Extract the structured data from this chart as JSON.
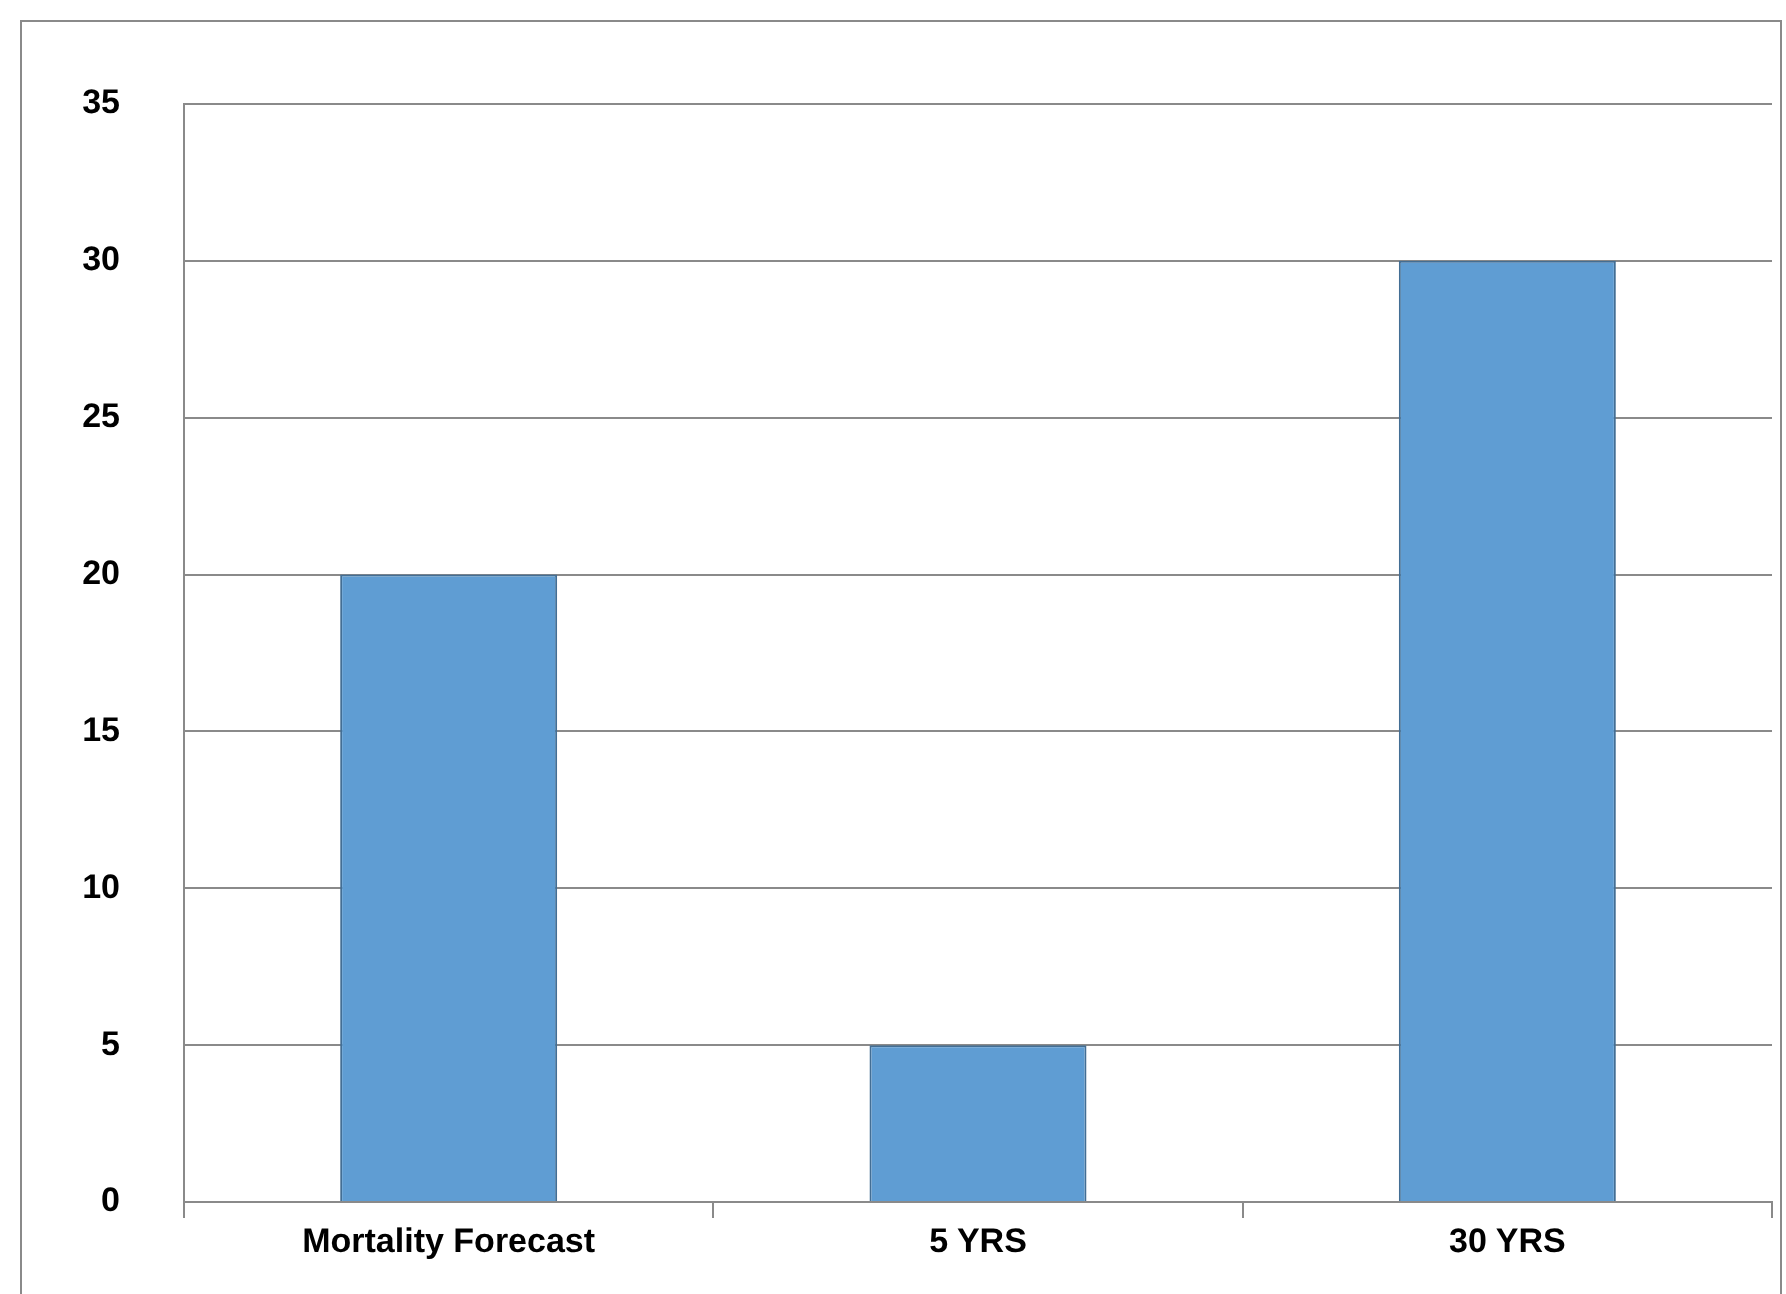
{
  "chart_data": {
    "type": "bar",
    "categories": [
      "Mortality Forecast",
      "5 YRS",
      "30 YRS"
    ],
    "values": [
      20,
      5,
      30
    ],
    "color": "#5f9dd3",
    "ylim": [
      0,
      35
    ],
    "yticks": [
      0,
      5,
      10,
      15,
      20,
      25,
      30,
      35
    ],
    "grid": "y",
    "legend": false
  }
}
